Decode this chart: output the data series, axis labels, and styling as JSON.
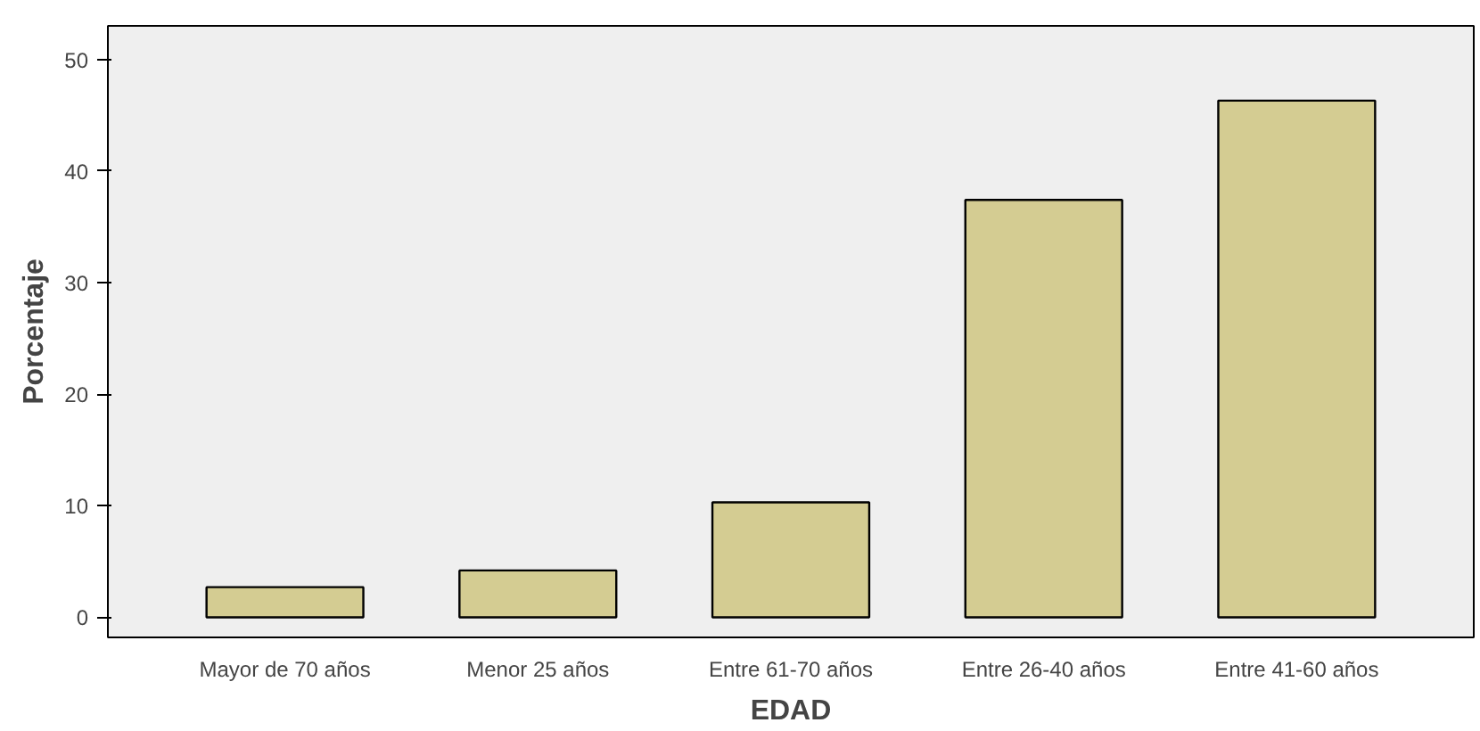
{
  "chart_data": {
    "type": "bar",
    "xlabel": "EDAD",
    "ylabel": "Porcentaje",
    "categories": [
      "Mayor de 70 años",
      "Menor 25 años",
      "Entre 61-70 años",
      "Entre 26-40 años",
      "Entre 41-60 años"
    ],
    "values": [
      2.7,
      4.2,
      10.3,
      37.4,
      46.3
    ],
    "color": "#d4cc92",
    "ylim": [
      -1.8,
      53
    ],
    "yticks": [
      0,
      10,
      20,
      30,
      40,
      50
    ],
    "grid": false
  }
}
